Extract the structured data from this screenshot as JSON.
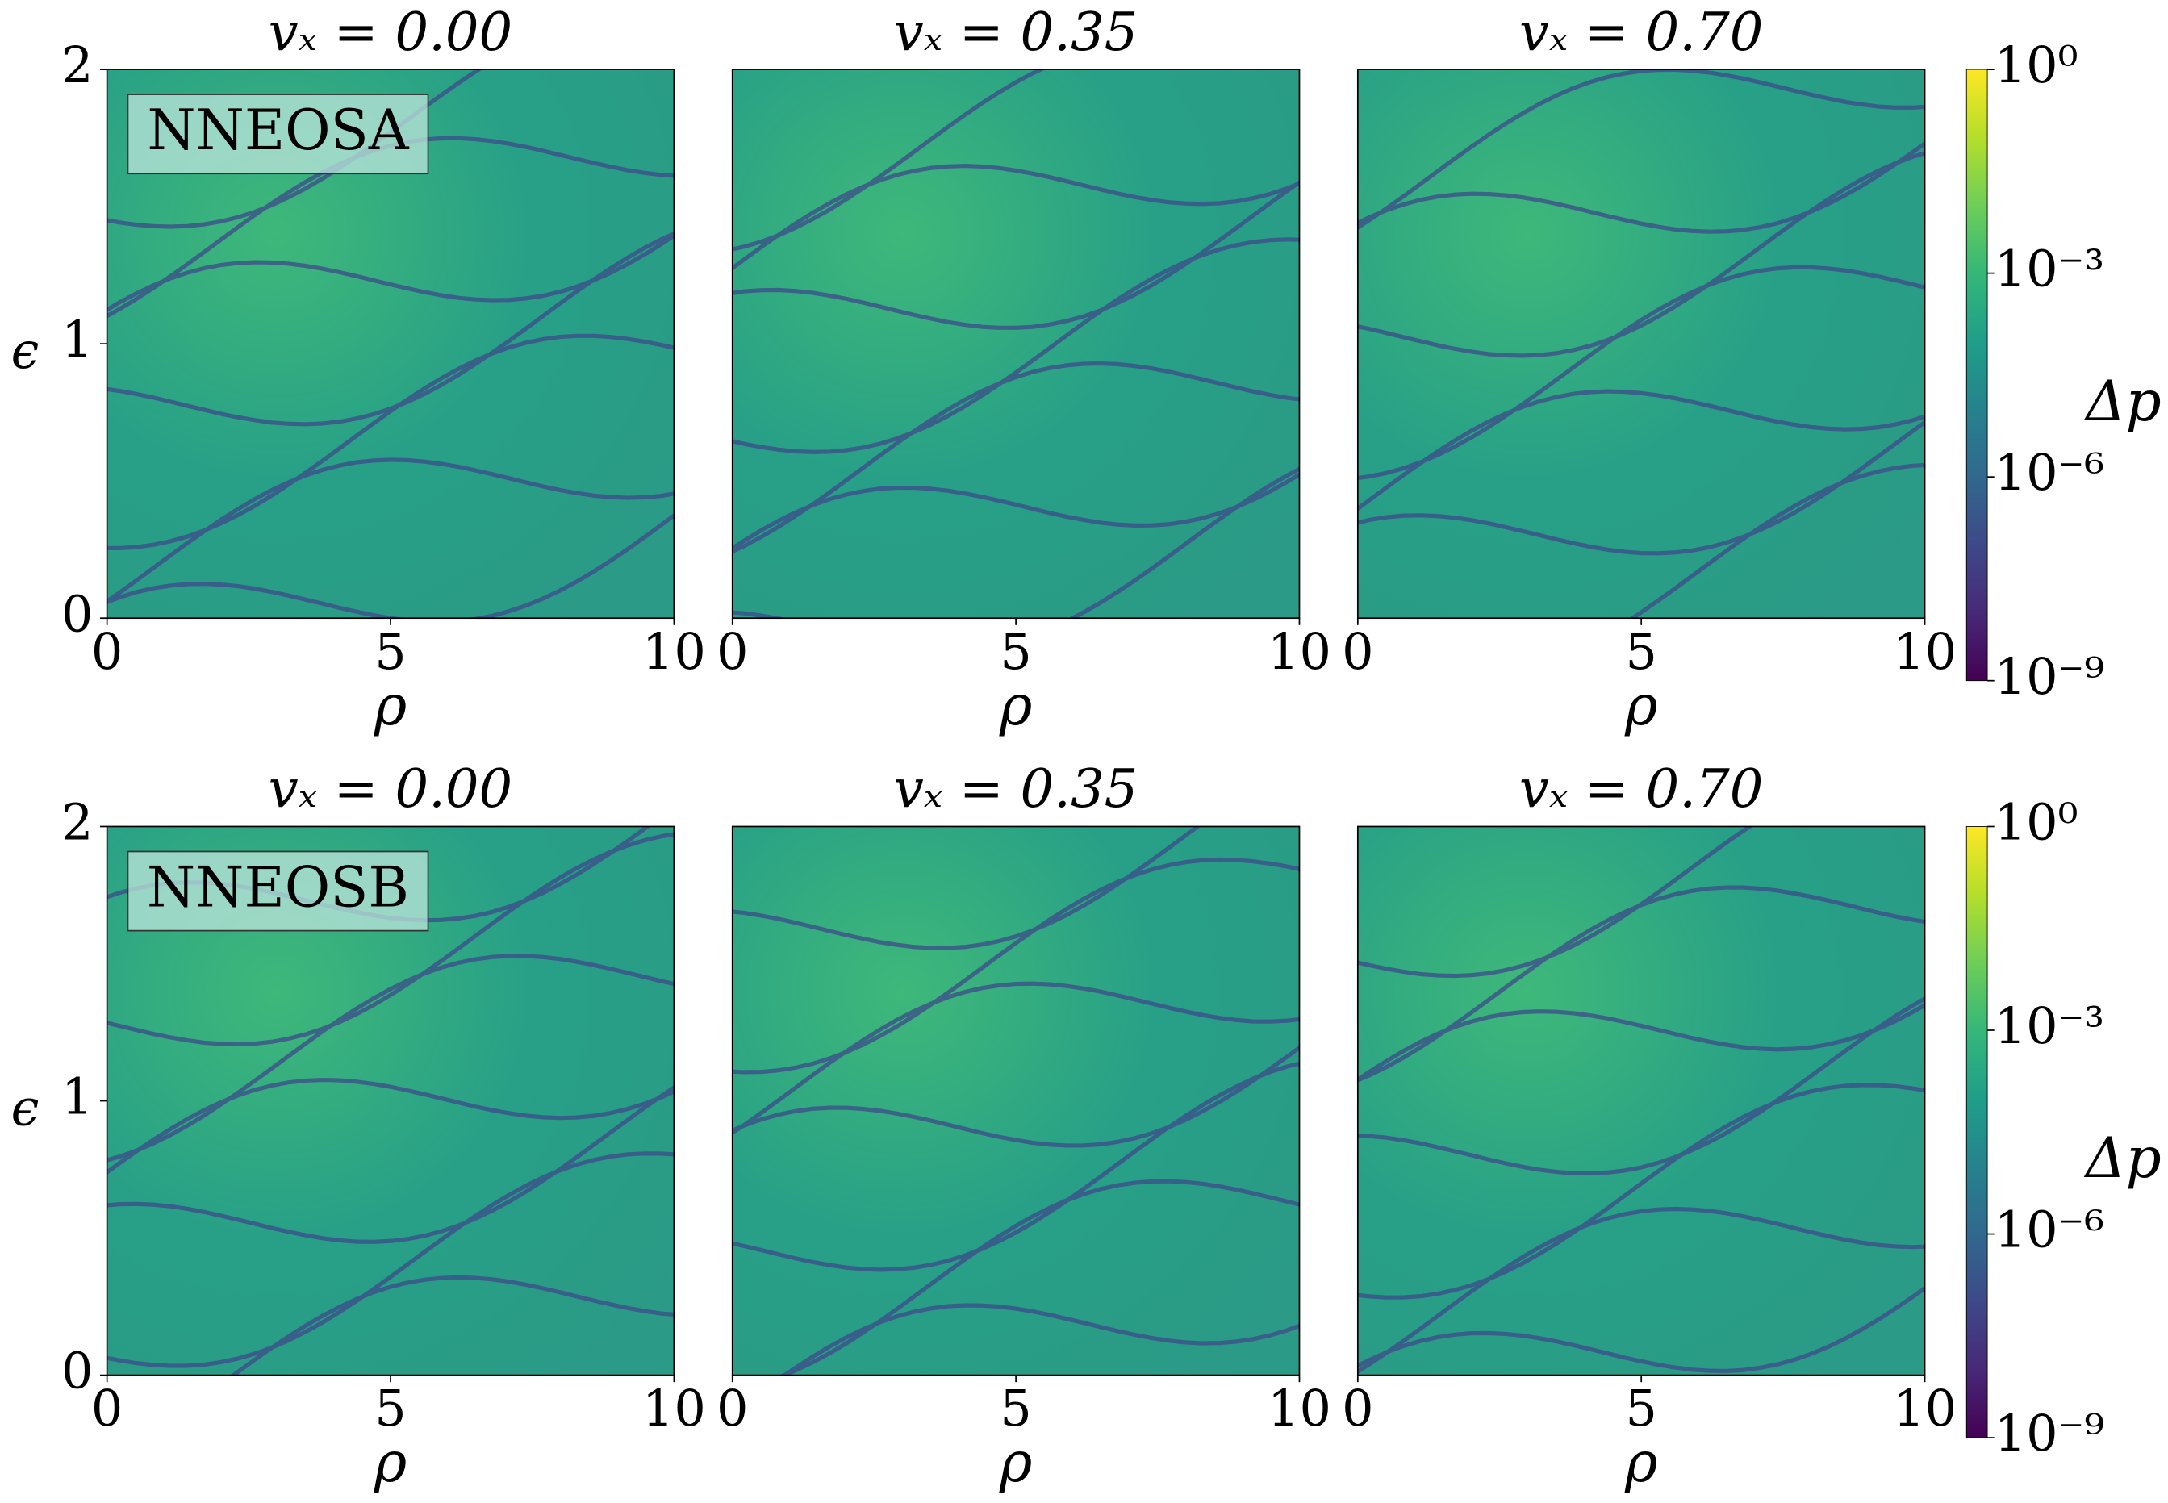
{
  "chart_data": [
    {
      "type": "heatmap",
      "title": "vₓ = 0.00",
      "xlabel": "ρ",
      "ylabel": "ϵ",
      "annotation": "NNEOSA",
      "xlim": [
        0,
        10
      ],
      "xticks": [
        0,
        5,
        10
      ],
      "ylim": [
        0,
        2
      ],
      "yticks": [
        0,
        1,
        2
      ]
    },
    {
      "type": "heatmap",
      "title": "vₓ = 0.35",
      "xlabel": "ρ",
      "xlim": [
        0,
        10
      ],
      "xticks": [
        0,
        5,
        10
      ],
      "ylim": [
        0,
        2
      ]
    },
    {
      "type": "heatmap",
      "title": "vₓ = 0.70",
      "xlabel": "ρ",
      "xlim": [
        0,
        10
      ],
      "xticks": [
        0,
        5,
        10
      ],
      "ylim": [
        0,
        2
      ]
    },
    {
      "type": "colorbar",
      "label": "Δp",
      "scale": "log",
      "colormap": "viridis",
      "clim": [
        1e-09,
        1
      ],
      "ticks": [
        {
          "value": 1,
          "label": "10⁰"
        },
        {
          "value": 0.001,
          "label": "10⁻³"
        },
        {
          "value": 1e-06,
          "label": "10⁻⁶"
        },
        {
          "value": 1e-09,
          "label": "10⁻⁹"
        }
      ]
    },
    {
      "type": "heatmap",
      "title": "vₓ = 0.00",
      "xlabel": "ρ",
      "ylabel": "ϵ",
      "annotation": "NNEOSB",
      "xlim": [
        0,
        10
      ],
      "xticks": [
        0,
        5,
        10
      ],
      "ylim": [
        0,
        2
      ],
      "yticks": [
        0,
        1,
        2
      ]
    },
    {
      "type": "heatmap",
      "title": "vₓ = 0.35",
      "xlabel": "ρ",
      "xlim": [
        0,
        10
      ],
      "xticks": [
        0,
        5,
        10
      ],
      "ylim": [
        0,
        2
      ]
    },
    {
      "type": "heatmap",
      "title": "vₓ = 0.70",
      "xlabel": "ρ",
      "xlim": [
        0,
        10
      ],
      "xticks": [
        0,
        5,
        10
      ],
      "ylim": [
        0,
        2
      ]
    },
    {
      "type": "colorbar",
      "label": "Δp",
      "scale": "log",
      "colormap": "viridis",
      "clim": [
        1e-09,
        1
      ],
      "ticks": [
        {
          "value": 1,
          "label": "10⁰"
        },
        {
          "value": 0.001,
          "label": "10⁻³"
        },
        {
          "value": 1e-06,
          "label": "10⁻⁶"
        },
        {
          "value": 1e-09,
          "label": "10⁻⁹"
        }
      ]
    }
  ]
}
